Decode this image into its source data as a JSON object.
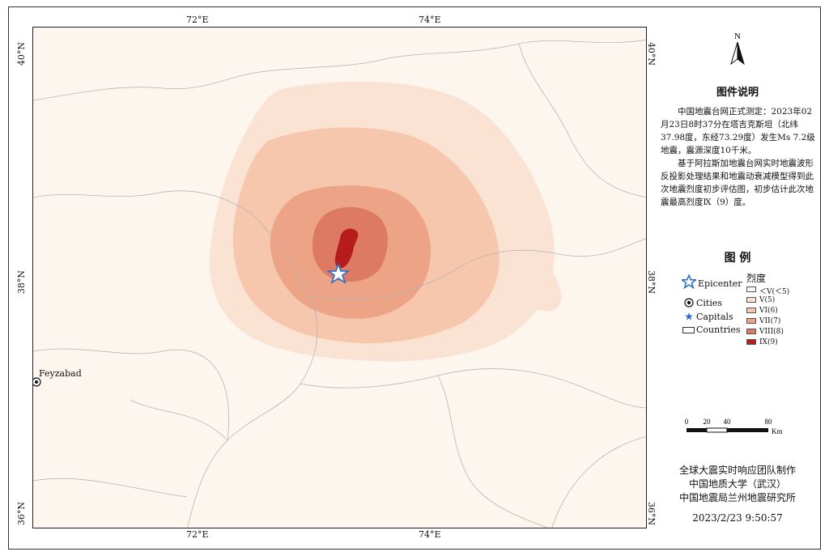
{
  "map": {
    "top_labels": [
      "72°E",
      "74°E"
    ],
    "bottom_labels": [
      "72°E",
      "74°E"
    ],
    "left_labels": [
      "40°N",
      "38°N",
      "36°N"
    ],
    "right_labels": [
      "40°N",
      "38°N",
      "36°N"
    ],
    "city": "Feyzabad",
    "colors": {
      "lt5": "#fdf6ef",
      "i5": "#fbe3d3",
      "i6": "#f6c7ad",
      "i7": "#eda385",
      "i8": "#dc7a64",
      "i9": "#b71c1c",
      "epicenter": "#1f6fd1"
    }
  },
  "panel": {
    "north": "N",
    "desc_title": "图件说明",
    "desc_p1": "中国地震台网正式测定：2023年02月23日8时37分在塔吉克斯坦（北纬37.98度，东经73.29度）发生Ms 7.2级地震，震源深度10千米。",
    "desc_p2": "基于阿拉斯加地震台网实时地震波形反投影处理结果和地震动衰减模型得到此次地震烈度初步评估图，初步估计此次地震最高烈度Ⅸ（9）度。",
    "legend_title": "图  例",
    "symbols": {
      "epicenter": "Epicenter",
      "cities": "Cities",
      "capitals": "Capitals",
      "countries": "Countries"
    },
    "intensity_title": "烈度",
    "intensity_classes": [
      {
        "label": "＜V(＜5)",
        "color": "#fdf6ef"
      },
      {
        "label": "V(5)",
        "color": "#fbe3d3"
      },
      {
        "label": "VI(6)",
        "color": "#f6c7ad"
      },
      {
        "label": "VII(7)",
        "color": "#eda385"
      },
      {
        "label": "VIII(8)",
        "color": "#dc7a64"
      },
      {
        "label": "IX(9)",
        "color": "#b71c1c"
      }
    ],
    "scale": {
      "labels": [
        "0",
        "20",
        "40",
        "80"
      ],
      "unit": "Km"
    },
    "credits": [
      "全球大震实时响应团队制作",
      "中国地质大学（武汉）",
      "中国地震局兰州地震研究所"
    ],
    "timestamp": "2023/2/23 9:50:57"
  }
}
